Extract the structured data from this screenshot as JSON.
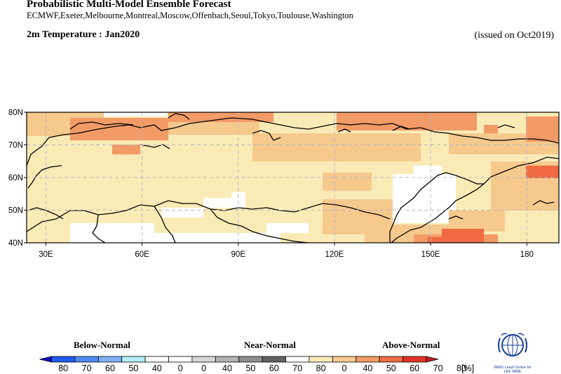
{
  "header": {
    "title": "Probabilistic Multi-Model Ensemble Forecast",
    "centres": "ECMWF,Exeter,Melbourne,Montreal,Moscow,Offenbach,Seoul,Tokyo,Toulouse,Washington",
    "subtitle": "2m Temperature : Jan2020",
    "issued": "(issued on Oct2019)"
  },
  "map": {
    "lat_labels": [
      "80N",
      "70N",
      "60N",
      "50N",
      "40N"
    ],
    "lon_labels": [
      "30E",
      "60E",
      "90E",
      "120E",
      "150E",
      "180"
    ],
    "lon_range": [
      24,
      190
    ],
    "lat_range": [
      40,
      80
    ]
  },
  "legend": {
    "below_label": "Below-Normal",
    "near_label": "Near-Normal",
    "above_label": "Above-Normal",
    "unit": "[%]",
    "below_ticks": [
      "80",
      "70",
      "60",
      "50",
      "40"
    ],
    "near_ticks": [
      "0",
      "40",
      "50",
      "60",
      "70",
      "80"
    ],
    "above_ticks": [
      "0",
      "40",
      "50",
      "60",
      "70",
      "80"
    ],
    "zero_tick": "0",
    "below_colors": [
      "#1e5cf0",
      "#4f8cf5",
      "#7fb1f7",
      "#b3effc",
      "#ffffff"
    ],
    "near_colors": [
      "#ffffff",
      "#d7d7d7",
      "#b3b3b3",
      "#8f8f8f",
      "#636363"
    ],
    "above_colors": [
      "#ffffff",
      "#faebb6",
      "#f6c98d",
      "#f29b66",
      "#f06a43",
      "#e43424"
    ],
    "above_arrow_color": "#c21e1e",
    "below_arrow_color": "#1010c8"
  },
  "logo": {
    "icon": "wmo-emblem-icon",
    "caption_1": "WMO Lead Centre for",
    "caption_2": "LRF MME"
  }
}
